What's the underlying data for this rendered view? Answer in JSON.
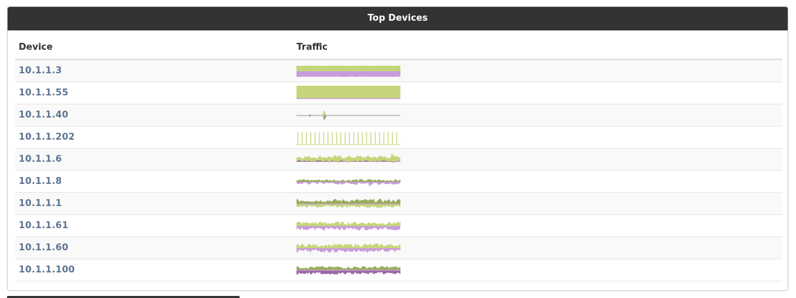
{
  "panel": {
    "title": "Top Devices"
  },
  "table": {
    "headers": {
      "device": "Device",
      "traffic": "Traffic"
    },
    "rows": [
      {
        "device": "10.1.1.3",
        "pattern": "solid"
      },
      {
        "device": "10.1.1.55",
        "pattern": "solid-green"
      },
      {
        "device": "10.1.1.40",
        "pattern": "sparse-spike"
      },
      {
        "device": "10.1.1.202",
        "pattern": "spikes"
      },
      {
        "device": "10.1.1.6",
        "pattern": "noisy-low"
      },
      {
        "device": "10.1.1.8",
        "pattern": "noisy-thin"
      },
      {
        "device": "10.1.1.1",
        "pattern": "noisy-thick"
      },
      {
        "device": "10.1.1.61",
        "pattern": "noisy-balanced"
      },
      {
        "device": "10.1.1.60",
        "pattern": "noisy-balanced"
      },
      {
        "device": "10.1.1.100",
        "pattern": "noisy-dark"
      }
    ]
  },
  "colors": {
    "in": "#c5d67a",
    "out": "#c99bdb",
    "in_dark": "#98ad5d",
    "out_dark": "#9a66a8",
    "axis": "#999999"
  }
}
